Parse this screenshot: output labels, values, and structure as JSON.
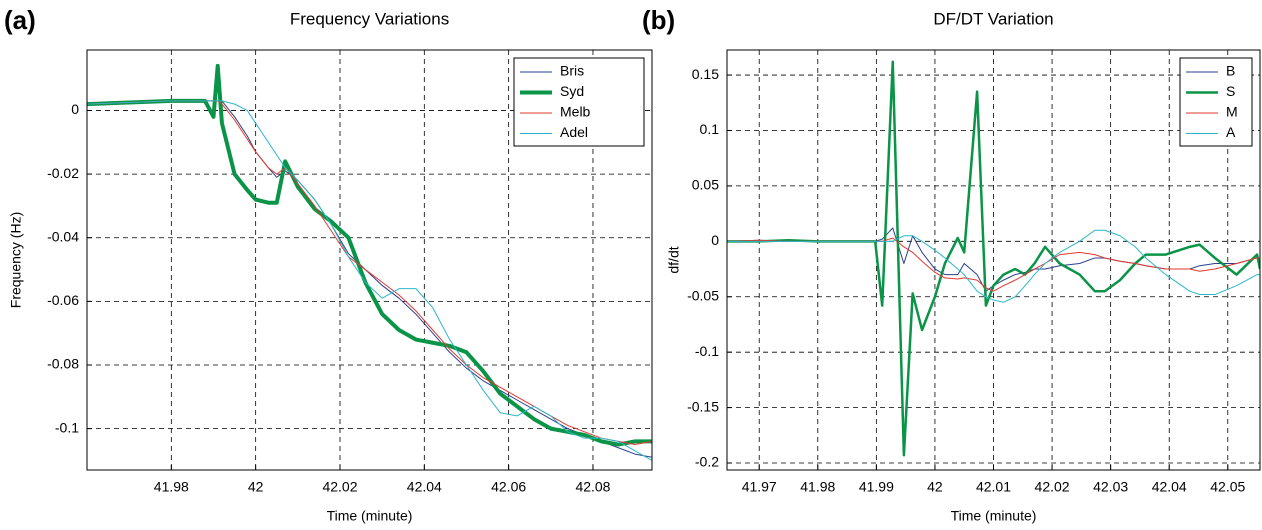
{
  "chart_data": [
    {
      "type": "line",
      "panel_label": "(a)",
      "title": "Frequency Variations",
      "x_label": "Time (minute)",
      "y_label": "Frequency (Hz)",
      "xlim": [
        41.96,
        42.094
      ],
      "ylim": [
        -0.113,
        0.019
      ],
      "xticks": [
        41.98,
        42,
        42.02,
        42.04,
        42.06,
        42.08
      ],
      "yticks": [
        0,
        -0.02,
        -0.04,
        -0.06,
        -0.08,
        -0.1
      ],
      "grid": true,
      "legend": "upper right",
      "x": [
        41.96,
        41.97,
        41.98,
        41.988,
        41.99,
        41.991,
        41.992,
        41.995,
        41.998,
        42.0,
        42.003,
        42.005,
        42.007,
        42.01,
        42.014,
        42.018,
        42.022,
        42.026,
        42.03,
        42.034,
        42.038,
        42.042,
        42.046,
        42.05,
        42.054,
        42.058,
        42.062,
        42.066,
        42.07,
        42.074,
        42.078,
        42.082,
        42.086,
        42.09,
        42.094
      ],
      "series": [
        {
          "name": "Bris",
          "color": "#2b3f8f",
          "linewidth": 1,
          "values": [
            0.002,
            0.0025,
            0.003,
            0.003,
            0.003,
            0.003,
            0.003,
            -0.002,
            -0.008,
            -0.013,
            -0.018,
            -0.021,
            -0.019,
            -0.022,
            -0.028,
            -0.036,
            -0.045,
            -0.05,
            -0.055,
            -0.059,
            -0.064,
            -0.07,
            -0.076,
            -0.081,
            -0.085,
            -0.088,
            -0.091,
            -0.094,
            -0.097,
            -0.1,
            -0.102,
            -0.104,
            -0.106,
            -0.108,
            -0.109
          ]
        },
        {
          "name": "Syd",
          "color": "#0a9447",
          "linewidth": 4,
          "values": [
            0.002,
            0.0025,
            0.003,
            0.003,
            -0.002,
            0.014,
            -0.004,
            -0.02,
            -0.025,
            -0.028,
            -0.029,
            -0.029,
            -0.016,
            -0.024,
            -0.031,
            -0.035,
            -0.04,
            -0.054,
            -0.064,
            -0.069,
            -0.072,
            -0.073,
            -0.074,
            -0.076,
            -0.082,
            -0.089,
            -0.093,
            -0.097,
            -0.1,
            -0.101,
            -0.102,
            -0.104,
            -0.105,
            -0.104,
            -0.104
          ]
        },
        {
          "name": "Melb",
          "color": "#e03a2e",
          "linewidth": 1,
          "values": [
            0.002,
            0.0025,
            0.003,
            0.003,
            0.003,
            0.003,
            0.002,
            -0.003,
            -0.009,
            -0.013,
            -0.018,
            -0.02,
            -0.018,
            -0.023,
            -0.03,
            -0.038,
            -0.046,
            -0.05,
            -0.054,
            -0.058,
            -0.063,
            -0.069,
            -0.075,
            -0.08,
            -0.084,
            -0.087,
            -0.09,
            -0.093,
            -0.096,
            -0.099,
            -0.101,
            -0.103,
            -0.104,
            -0.105,
            -0.104
          ]
        },
        {
          "name": "Adel",
          "color": "#2bb7c8",
          "linewidth": 1,
          "values": [
            0.002,
            0.0025,
            0.003,
            0.003,
            0.003,
            0.003,
            0.003,
            0.002,
            0.0,
            -0.004,
            -0.01,
            -0.014,
            -0.018,
            -0.022,
            -0.028,
            -0.036,
            -0.046,
            -0.054,
            -0.059,
            -0.056,
            -0.056,
            -0.062,
            -0.072,
            -0.08,
            -0.088,
            -0.095,
            -0.096,
            -0.093,
            -0.096,
            -0.101,
            -0.103,
            -0.103,
            -0.104,
            -0.107,
            -0.11
          ]
        }
      ]
    },
    {
      "type": "line",
      "panel_label": "(b)",
      "title": "DF/DT  Variation",
      "x_label": "Time (minute)",
      "y_label": "df/dt",
      "xlim": [
        41.9645,
        42.0555
      ],
      "ylim": [
        -0.2063,
        0.1726
      ],
      "xticks": [
        41.97,
        41.98,
        41.99,
        42,
        42.01,
        42.02,
        42.03,
        42.04,
        42.05
      ],
      "yticks": [
        0.15,
        0.1,
        0.05,
        0,
        -0.05,
        -0.1,
        -0.15,
        -0.2
      ],
      "grid": true,
      "legend": "upper right",
      "x": [
        41.9645,
        41.97,
        41.975,
        41.98,
        41.985,
        41.9898,
        41.991,
        41.9928,
        41.9947,
        41.9962,
        41.9978,
        42.0,
        42.0017,
        42.0039,
        42.005,
        42.0072,
        42.0087,
        42.01,
        42.0117,
        42.0137,
        42.0154,
        42.017,
        42.0188,
        42.0213,
        42.0247,
        42.0273,
        42.029,
        42.0316,
        42.0342,
        42.036,
        42.0394,
        42.0435,
        42.0452,
        42.0478,
        42.0515,
        42.055,
        42.0555
      ],
      "series": [
        {
          "name": "B",
          "color": "#2b3f8f",
          "linewidth": 1,
          "values": [
            0,
            0.001,
            0,
            0,
            0,
            0,
            0.002,
            0.012,
            -0.02,
            0.005,
            -0.01,
            -0.025,
            -0.03,
            -0.03,
            -0.02,
            -0.03,
            -0.045,
            -0.04,
            -0.035,
            -0.03,
            -0.028,
            -0.025,
            -0.025,
            -0.022,
            -0.02,
            -0.015,
            -0.015,
            -0.018,
            -0.02,
            -0.022,
            -0.025,
            -0.025,
            -0.022,
            -0.02,
            -0.02,
            -0.015,
            -0.015
          ]
        },
        {
          "name": "S",
          "color": "#0a9447",
          "linewidth": 2.5,
          "values": [
            0,
            0,
            0.001,
            0,
            0,
            0,
            -0.058,
            0.162,
            -0.193,
            -0.047,
            -0.08,
            -0.05,
            -0.02,
            0.003,
            -0.01,
            0.135,
            -0.058,
            -0.04,
            -0.03,
            -0.025,
            -0.03,
            -0.02,
            -0.005,
            -0.02,
            -0.03,
            -0.045,
            -0.045,
            -0.035,
            -0.02,
            -0.012,
            -0.012,
            -0.005,
            -0.003,
            -0.015,
            -0.03,
            -0.012,
            -0.025
          ]
        },
        {
          "name": "M",
          "color": "#e03a2e",
          "linewidth": 1,
          "values": [
            0,
            0.001,
            0,
            0,
            0,
            0,
            0,
            0.003,
            -0.005,
            -0.01,
            -0.018,
            -0.028,
            -0.033,
            -0.034,
            -0.033,
            -0.035,
            -0.042,
            -0.045,
            -0.04,
            -0.035,
            -0.03,
            -0.025,
            -0.02,
            -0.012,
            -0.01,
            -0.012,
            -0.015,
            -0.018,
            -0.02,
            -0.022,
            -0.025,
            -0.025,
            -0.027,
            -0.025,
            -0.02,
            -0.015,
            -0.015
          ]
        },
        {
          "name": "A",
          "color": "#2bb7c8",
          "linewidth": 1,
          "values": [
            0,
            0,
            0,
            0,
            0,
            0,
            0,
            0,
            0.005,
            0.005,
            0,
            -0.008,
            -0.015,
            -0.025,
            -0.03,
            -0.045,
            -0.05,
            -0.053,
            -0.055,
            -0.05,
            -0.04,
            -0.03,
            -0.02,
            -0.01,
            0,
            0.01,
            0.01,
            0.005,
            -0.005,
            -0.015,
            -0.03,
            -0.045,
            -0.048,
            -0.048,
            -0.04,
            -0.03,
            -0.03
          ]
        }
      ]
    }
  ]
}
